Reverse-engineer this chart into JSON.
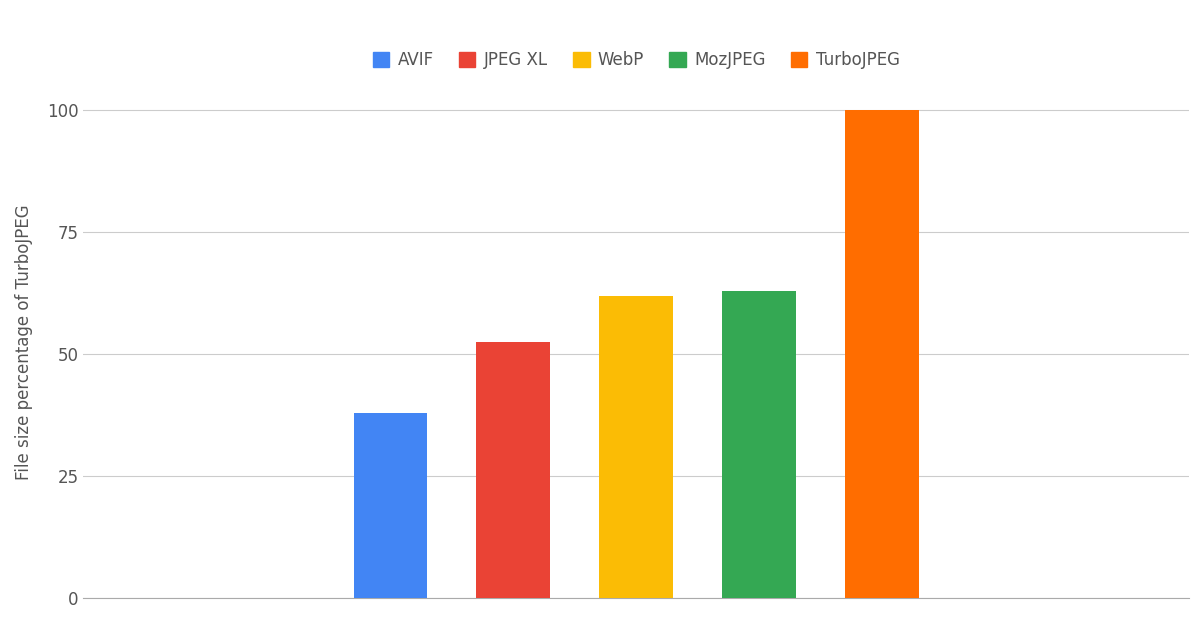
{
  "categories": [
    "AVIF",
    "JPEG XL",
    "WebP",
    "MozJPEG",
    "TurboJPEG"
  ],
  "values": [
    38,
    52.5,
    62,
    63,
    100
  ],
  "colors": [
    "#4285F4",
    "#EA4335",
    "#FBBC05",
    "#34A853",
    "#FF6D00"
  ],
  "ylabel": "File size percentage of TurboJPEG",
  "ylim": [
    0,
    105
  ],
  "yticks": [
    0,
    25,
    50,
    75,
    100
  ],
  "legend_labels": [
    "AVIF",
    "JPEG XL",
    "WebP",
    "MozJPEG",
    "TurboJPEG"
  ],
  "background_color": "#ffffff",
  "grid_color": "#cccccc",
  "bar_width": 0.6,
  "label_fontsize": 12,
  "tick_fontsize": 12,
  "legend_fontsize": 12,
  "xlim": [
    -1.5,
    7.5
  ]
}
